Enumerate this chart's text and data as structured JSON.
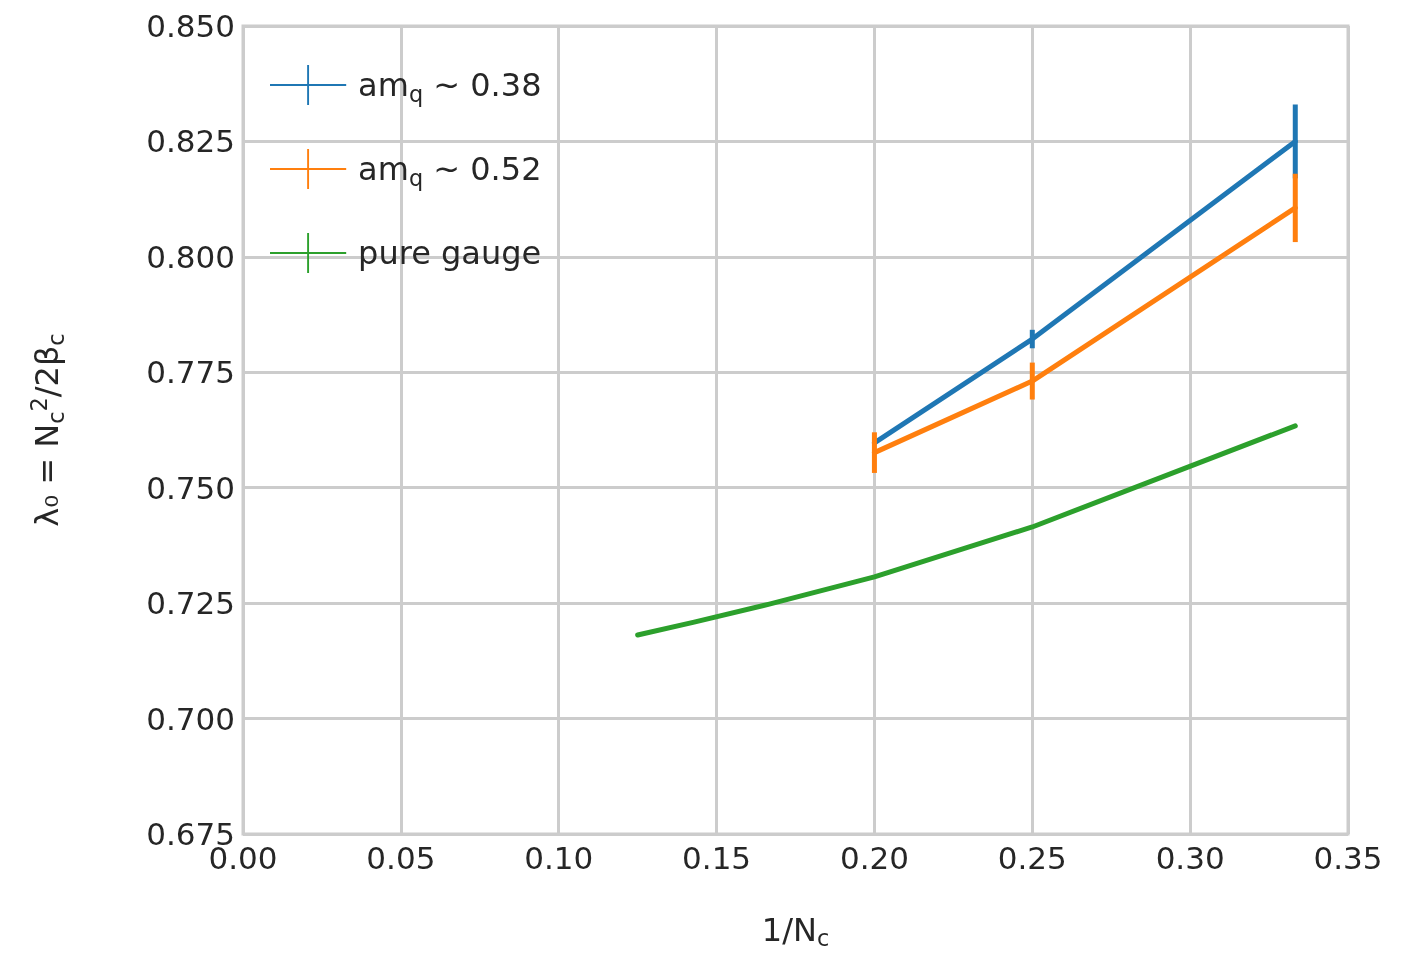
{
  "chart_data": {
    "type": "line",
    "xlabel": "1/N$_{c}$",
    "ylabel": "λ₀ = N$_{c}$$^{2}$/2β$_{c}$",
    "series": [
      {
        "name": "am$_{q}$ ~ 0.38",
        "color": "#1f77b4",
        "x": [
          0.2,
          0.25,
          0.3333
        ],
        "values": [
          0.7597,
          0.7822,
          0.825
        ],
        "errors": [
          null,
          0.002,
          0.008
        ]
      },
      {
        "name": "am$_{q}$ ~ 0.52",
        "color": "#ff7f0e",
        "x": [
          0.2,
          0.25,
          0.3333
        ],
        "values": [
          0.7576,
          0.7731,
          0.8106
        ],
        "errors": [
          0.0044,
          0.004,
          0.0074
        ]
      },
      {
        "name": "pure gauge",
        "color": "#2ca02c",
        "x": [
          0.125,
          0.1429,
          0.1667,
          0.2,
          0.25,
          0.3333
        ],
        "values": [
          0.7181,
          0.7209,
          0.7248,
          0.7307,
          0.7415,
          0.7634
        ]
      }
    ],
    "xlim": [
      0,
      0.35
    ],
    "xticks": [
      {
        "value": 0,
        "label": "0.00"
      },
      {
        "value": 0.05,
        "label": "0.05"
      },
      {
        "value": 0.1,
        "label": "0.10"
      },
      {
        "value": 0.15,
        "label": "0.15"
      },
      {
        "value": 0.2,
        "label": "0.20"
      },
      {
        "value": 0.25,
        "label": "0.25"
      },
      {
        "value": 0.3,
        "label": "0.30"
      },
      {
        "value": 0.35,
        "label": "0.35"
      }
    ],
    "ylim": [
      0.675,
      0.85
    ],
    "yticks": [
      {
        "value": 0.675,
        "label": "0.675"
      },
      {
        "value": 0.7,
        "label": "0.700"
      },
      {
        "value": 0.725,
        "label": "0.725"
      },
      {
        "value": 0.75,
        "label": "0.750"
      },
      {
        "value": 0.775,
        "label": "0.775"
      },
      {
        "value": 0.8,
        "label": "0.800"
      },
      {
        "value": 0.825,
        "label": "0.825"
      },
      {
        "value": 0.85,
        "label": "0.850"
      }
    ],
    "grid": true,
    "legend": "top left",
    "marker": "none",
    "line_style": "solid"
  }
}
